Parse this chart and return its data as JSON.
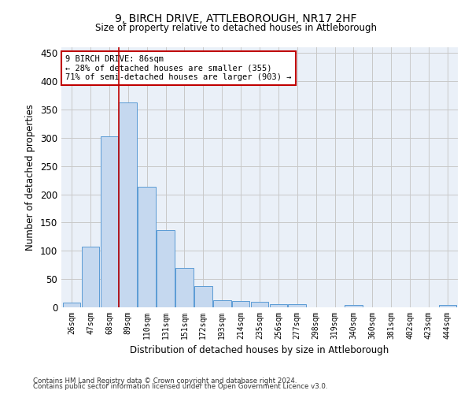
{
  "title1": "9, BIRCH DRIVE, ATTLEBOROUGH, NR17 2HF",
  "title2": "Size of property relative to detached houses in Attleborough",
  "xlabel": "Distribution of detached houses by size in Attleborough",
  "ylabel": "Number of detached properties",
  "categories": [
    "26sqm",
    "47sqm",
    "68sqm",
    "89sqm",
    "110sqm",
    "131sqm",
    "151sqm",
    "172sqm",
    "193sqm",
    "214sqm",
    "235sqm",
    "256sqm",
    "277sqm",
    "298sqm",
    "319sqm",
    "340sqm",
    "360sqm",
    "381sqm",
    "402sqm",
    "423sqm",
    "444sqm"
  ],
  "bar_heights": [
    9,
    108,
    302,
    362,
    213,
    137,
    70,
    38,
    13,
    11,
    10,
    6,
    5,
    0,
    0,
    4,
    0,
    0,
    0,
    0,
    4
  ],
  "bar_color": "#c5d8ef",
  "bar_edge_color": "#5b9bd5",
  "grid_color": "#c8c8c8",
  "red_line_index": 3,
  "annotation_line1": "9 BIRCH DRIVE: 86sqm",
  "annotation_line2": "← 28% of detached houses are smaller (355)",
  "annotation_line3": "71% of semi-detached houses are larger (903) →",
  "annotation_box_color": "#ffffff",
  "annotation_border_color": "#c00000",
  "ylim": [
    0,
    460
  ],
  "yticks": [
    0,
    50,
    100,
    150,
    200,
    250,
    300,
    350,
    400,
    450
  ],
  "footer1": "Contains HM Land Registry data © Crown copyright and database right 2024.",
  "footer2": "Contains public sector information licensed under the Open Government Licence v3.0.",
  "bg_color": "#ffffff",
  "plot_bg_color": "#eaf0f8"
}
